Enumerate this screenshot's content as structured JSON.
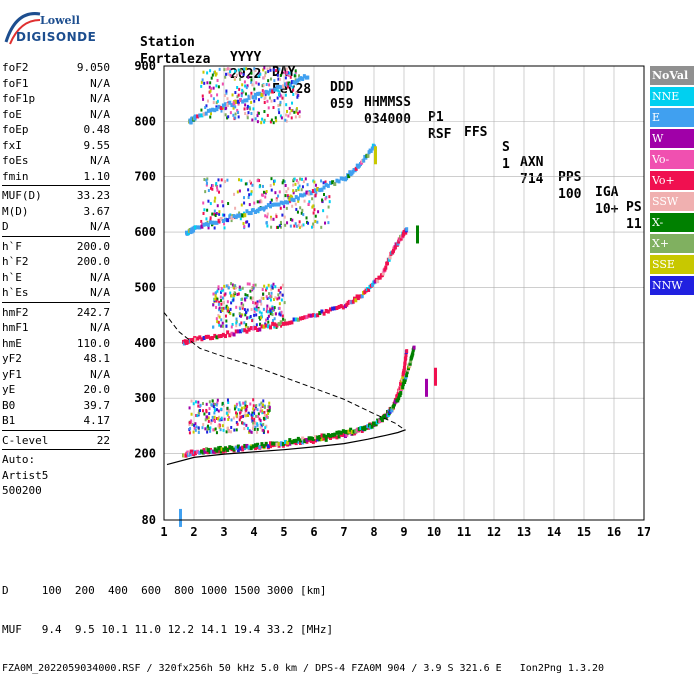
{
  "logo": {
    "line1": "Lowell",
    "line2": "DIGISONDE"
  },
  "header": {
    "row1": [
      "Station",
      "YYYY",
      "DAY",
      "DDD",
      "HHMMSS",
      "P1",
      "FFS",
      "S",
      "AXN",
      "PPS",
      "IGA",
      "PS"
    ],
    "row2": [
      "Fortaleza",
      "2022",
      "Fev28",
      "059",
      "034000",
      "RSF",
      "",
      "1",
      "714",
      "100",
      "10+",
      "11"
    ]
  },
  "params_group1": [
    {
      "name": "foF2",
      "value": "9.050"
    },
    {
      "name": "foF1",
      "value": "N/A"
    },
    {
      "name": "foF1p",
      "value": "N/A"
    },
    {
      "name": "foE",
      "value": "N/A"
    },
    {
      "name": "foEp",
      "value": "0.48"
    },
    {
      "name": "fxI",
      "value": "9.55"
    },
    {
      "name": "foEs",
      "value": "N/A"
    },
    {
      "name": "fmin",
      "value": "1.10"
    }
  ],
  "params_group2": [
    {
      "name": "MUF(D)",
      "value": "33.23"
    },
    {
      "name": "M(D)",
      "value": "3.67"
    },
    {
      "name": "D",
      "value": "N/A"
    }
  ],
  "params_group3": [
    {
      "name": "h`F",
      "value": "200.0"
    },
    {
      "name": "h`F2",
      "value": "200.0"
    },
    {
      "name": "h`E",
      "value": "N/A"
    },
    {
      "name": "h`Es",
      "value": "N/A"
    }
  ],
  "params_group4": [
    {
      "name": "hmF2",
      "value": "242.7"
    },
    {
      "name": "hmF1",
      "value": "N/A"
    },
    {
      "name": "hmE",
      "value": "110.0"
    },
    {
      "name": "yF2",
      "value": "48.1"
    },
    {
      "name": "yF1",
      "value": "N/A"
    },
    {
      "name": "yE",
      "value": "20.0"
    },
    {
      "name": "B0",
      "value": "39.7"
    },
    {
      "name": "B1",
      "value": "4.17"
    }
  ],
  "params_group5": [
    {
      "name": "C-level",
      "value": "22"
    }
  ],
  "notes": [
    "Auto:",
    "Artist5",
    "500200"
  ],
  "legend": [
    {
      "label": "NoVal",
      "color": "#909090",
      "bold": true
    },
    {
      "label": "NNE",
      "color": "#00d0f0"
    },
    {
      "label": "E",
      "color": "#40a0f0"
    },
    {
      "label": "W",
      "color": "#a000a8"
    },
    {
      "label": "Vo-",
      "color": "#f050b0"
    },
    {
      "label": "Vo+",
      "color": "#f01050"
    },
    {
      "label": "SSW",
      "color": "#f0b0b0"
    },
    {
      "label": "X-",
      "color": "#008000"
    },
    {
      "label": "X+",
      "color": "#80b060"
    },
    {
      "label": "SSE",
      "color": "#c8c800"
    },
    {
      "label": "NNW",
      "color": "#2020e0"
    }
  ],
  "chart_data": {
    "type": "scatter",
    "title": "",
    "xlabel": "",
    "ylabel": "",
    "xlim": [
      1,
      17
    ],
    "ylim": [
      80,
      900
    ],
    "x_ticks": [
      1,
      2,
      3,
      4,
      5,
      6,
      7,
      8,
      9,
      10,
      11,
      12,
      13,
      14,
      15,
      16,
      17
    ],
    "y_ticks": [
      80,
      200,
      300,
      400,
      500,
      600,
      700,
      800,
      900
    ],
    "grid": true,
    "legend_position": "right",
    "solid_profile": {
      "name": "",
      "x": [
        1.1,
        2,
        3,
        4,
        5,
        6,
        7,
        7.8,
        8.4,
        8.8,
        9.05
      ],
      "y": [
        180,
        193,
        199,
        203,
        207,
        212,
        218,
        226,
        233,
        238,
        243
      ]
    },
    "dashed_profile": {
      "name": "",
      "x": [
        1.0,
        1.5,
        2.2,
        3.0,
        4.0,
        5.0,
        6.0,
        7.0,
        8.0,
        8.7,
        9.05
      ],
      "y": [
        455,
        420,
        390,
        375,
        358,
        338,
        318,
        298,
        272,
        255,
        242
      ]
    },
    "traces": [
      {
        "name": "F first hop",
        "x": [
          1.6,
          2,
          3,
          4,
          5,
          6,
          7,
          7.6,
          8.2,
          8.6,
          8.9,
          9.05
        ],
        "y": [
          200,
          204,
          209,
          213,
          219,
          226,
          236,
          246,
          262,
          286,
          335,
          390
        ]
      },
      {
        "name": "F first hop (X)",
        "x": [
          2.2,
          3,
          4,
          5,
          6,
          7,
          7.8,
          8.4,
          8.8,
          9.1,
          9.3
        ],
        "y": [
          206,
          210,
          215,
          222,
          230,
          240,
          250,
          270,
          305,
          355,
          395
        ]
      },
      {
        "name": "F second hop",
        "x": [
          1.6,
          2,
          3,
          4,
          5,
          6,
          7,
          7.6,
          8.2,
          8.6,
          8.9,
          9.05
        ],
        "y": [
          402,
          408,
          417,
          427,
          438,
          452,
          470,
          490,
          522,
          570,
          596,
          605
        ]
      },
      {
        "name": "F third hop",
        "x": [
          1.7,
          2,
          3,
          4,
          5,
          6,
          7,
          7.5,
          8
        ],
        "y": [
          600,
          608,
          625,
          641,
          657,
          676,
          700,
          725,
          760
        ]
      },
      {
        "name": "F fourth hop",
        "x": [
          1.8,
          2,
          3,
          4,
          5,
          5.8
        ],
        "y": [
          800,
          810,
          830,
          848,
          866,
          885
        ]
      }
    ],
    "band_ranges": [
      {
        "name": "F2 spread 1",
        "x": [
          1.8,
          4.5
        ],
        "y": [
          240,
          300
        ]
      },
      {
        "name": "F2 spread 2",
        "x": [
          2.6,
          5
        ],
        "y": [
          430,
          510
        ]
      },
      {
        "name": "F2 spread 3",
        "x": [
          2.2,
          6.5
        ],
        "y": [
          610,
          700
        ]
      },
      {
        "name": "F2 spread 4",
        "x": [
          2.2,
          5.5
        ],
        "y": [
          800,
          900
        ]
      }
    ],
    "isolated_points": [
      {
        "x": 10.0,
        "y": 355,
        "color": "#f01050"
      },
      {
        "x": 9.7,
        "y": 335,
        "color": "#a000a8"
      },
      {
        "x": 9.4,
        "y": 612,
        "color": "#008000"
      },
      {
        "x": 1.5,
        "y": 100,
        "color": "#40a0f0"
      },
      {
        "x": 8.0,
        "y": 755,
        "color": "#c8c800"
      }
    ]
  },
  "footer": {
    "line1": "D     100  200  400  600  800 1000 1500 3000 [km]",
    "line2": "MUF   9.4  9.5 10.1 11.0 12.2 14.1 19.4 33.2 [MHz]",
    "line3": "FZA0M_2022059034000.RSF / 320fx256h 50 kHz 5.0 km / DPS-4 FZA0M 904 / 3.9 S 321.6 E   Ion2Png 1.3.20"
  }
}
